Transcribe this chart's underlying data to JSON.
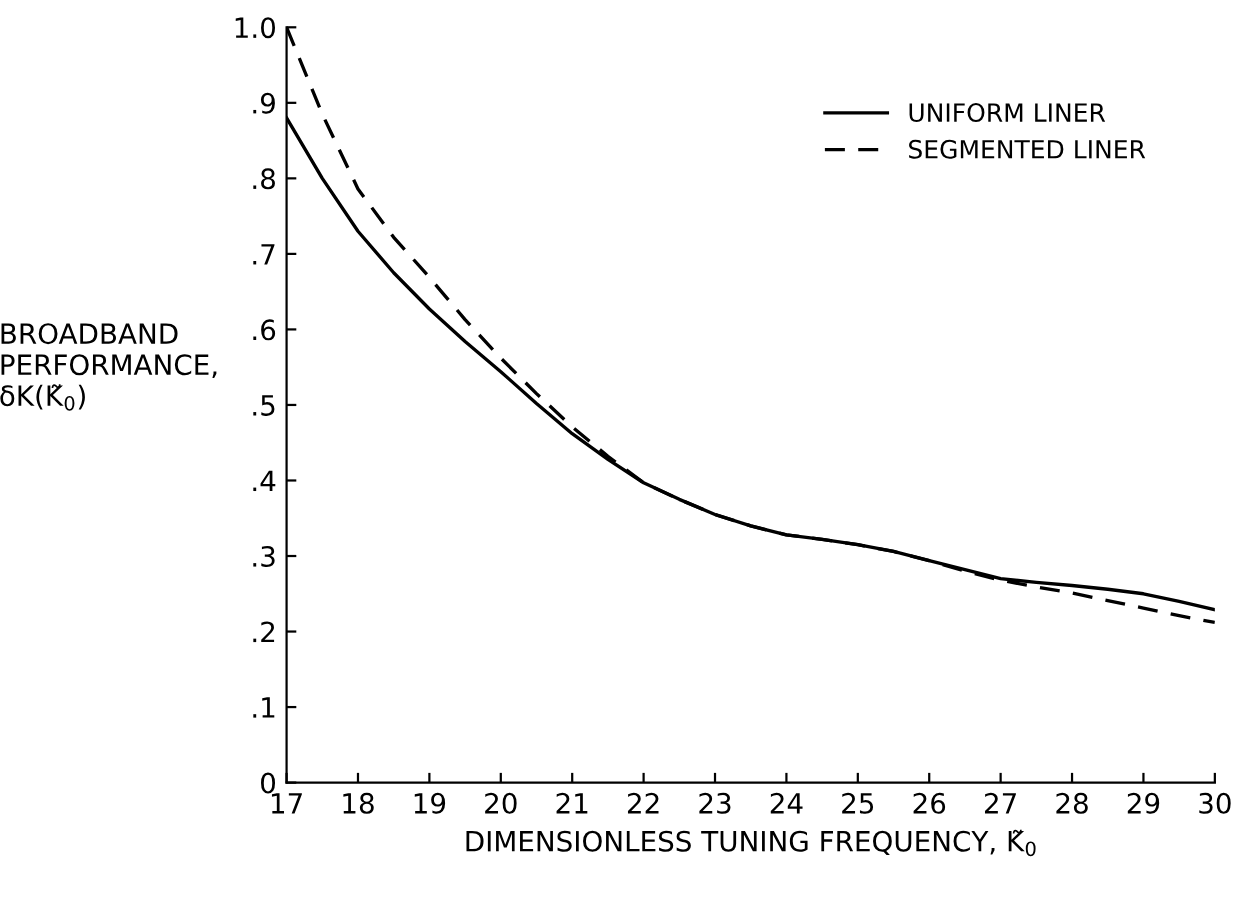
{
  "chart_data": {
    "type": "line",
    "xlabel": "DIMENSIONLESS TUNING FREQUENCY, K̃$_{0}$",
    "ylabel": "BROADBAND\nPERFORMANCE,\nδK(K̃$_{0}$)",
    "xlim": [
      17,
      30
    ],
    "xticks": [
      17,
      18,
      19,
      20,
      21,
      22,
      23,
      24,
      25,
      26,
      27,
      28,
      29,
      30
    ],
    "ylim": [
      0,
      1.0
    ],
    "yticks": [
      0,
      {
        "value": 0.1,
        "label": ".1"
      },
      {
        "value": 0.2,
        "label": ".2"
      },
      {
        "value": 0.3,
        "label": ".3"
      },
      {
        "value": 0.4,
        "label": ".4"
      },
      {
        "value": 0.5,
        "label": ".5"
      },
      {
        "value": 0.6,
        "label": ".6"
      },
      {
        "value": 0.7,
        "label": ".7"
      },
      {
        "value": 0.8,
        "label": ".8"
      },
      {
        "value": 0.9,
        "label": ".9"
      },
      {
        "value": 1.0,
        "label": "1.0"
      }
    ],
    "grid": false,
    "legend": "top right",
    "marker": "none",
    "x": [
      17,
      17.5,
      18,
      18.5,
      19,
      19.5,
      20,
      20.5,
      21,
      21.5,
      22,
      22.5,
      23,
      23.5,
      24,
      24.5,
      25,
      25.5,
      26,
      26.5,
      27,
      27.5,
      28,
      28.5,
      29,
      29.5,
      30
    ],
    "series": [
      {
        "name": "UNIFORM LINER",
        "color": "#000000",
        "line_style": "solid",
        "values": [
          0.88,
          0.8,
          0.73,
          0.675,
          0.627,
          0.584,
          0.544,
          0.502,
          0.462,
          0.428,
          0.397,
          0.375,
          0.355,
          0.34,
          0.328,
          0.322,
          0.315,
          0.306,
          0.294,
          0.282,
          0.27,
          0.265,
          0.261,
          0.256,
          0.25,
          0.24,
          0.229
        ]
      },
      {
        "name": "SEGMENTED LINER",
        "color": "#000000",
        "line_style": "dashed",
        "values": [
          1.0,
          0.885,
          0.786,
          0.722,
          0.669,
          0.613,
          0.562,
          0.515,
          0.471,
          0.432,
          0.397,
          0.375,
          0.355,
          0.34,
          0.328,
          0.322,
          0.315,
          0.306,
          0.294,
          0.28,
          0.268,
          0.259,
          0.251,
          0.241,
          0.231,
          0.221,
          0.212
        ]
      }
    ]
  }
}
